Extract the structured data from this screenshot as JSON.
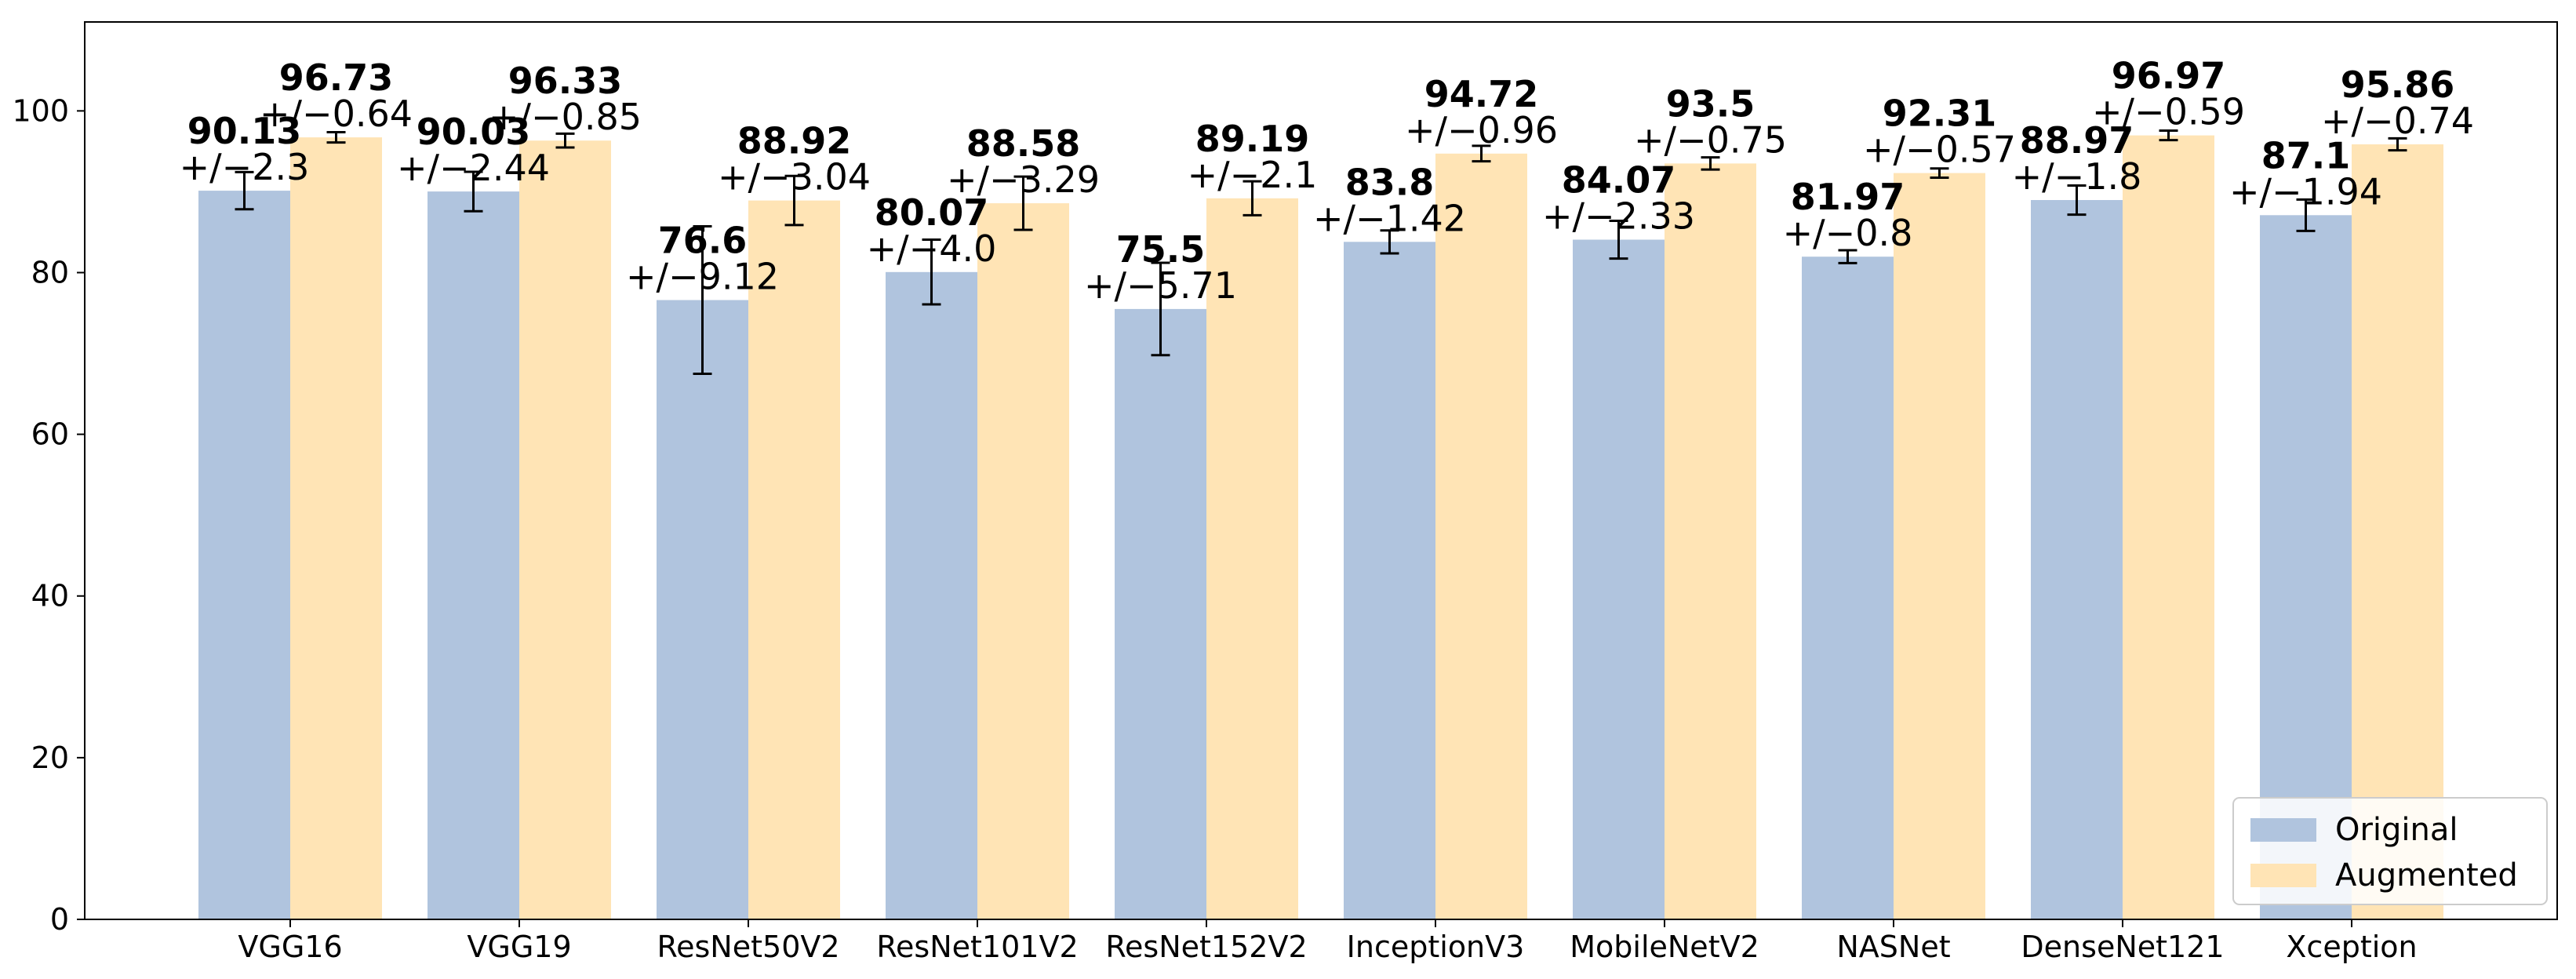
{
  "chart_data": {
    "type": "bar",
    "title": "",
    "xlabel": "",
    "ylabel": "",
    "ylim": [
      0,
      111
    ],
    "yticks": [
      0,
      20,
      40,
      60,
      80,
      100
    ],
    "grid": false,
    "legend_position": "bottom-right",
    "categories": [
      "VGG16",
      "VGG19",
      "ResNet50V2",
      "ResNet101V2",
      "ResNet152V2",
      "InceptionV3",
      "MobileNetV2",
      "NASNet",
      "DenseNet121",
      "Xception"
    ],
    "series": [
      {
        "name": "Original",
        "color": "#b0c4de",
        "values": [
          90.13,
          90.03,
          76.6,
          80.07,
          75.5,
          83.8,
          84.07,
          81.97,
          88.97,
          87.1
        ],
        "errors": [
          2.3,
          2.44,
          9.12,
          4.0,
          5.71,
          1.42,
          2.33,
          0.8,
          1.8,
          1.94
        ],
        "value_labels": [
          "90.13",
          "90.03",
          "76.6",
          "80.07",
          "75.5",
          "83.8",
          "84.07",
          "81.97",
          "88.97",
          "87.1"
        ],
        "error_labels": [
          "+/−2.3",
          "+/−2.44",
          "+/−9.12",
          "+/−4.0",
          "+/−5.71",
          "+/−1.42",
          "+/−2.33",
          "+/−0.8",
          "+/−1.8",
          "+/−1.94"
        ]
      },
      {
        "name": "Augmented",
        "color": "#ffe4b5",
        "values": [
          96.73,
          96.33,
          88.92,
          88.58,
          89.19,
          94.72,
          93.5,
          92.31,
          96.97,
          95.86
        ],
        "errors": [
          0.64,
          0.85,
          3.04,
          3.29,
          2.1,
          0.96,
          0.75,
          0.57,
          0.59,
          0.74
        ],
        "value_labels": [
          "96.73",
          "96.33",
          "88.92",
          "88.58",
          "89.19",
          "94.72",
          "93.5",
          "92.31",
          "96.97",
          "95.86"
        ],
        "error_labels": [
          "+/−0.64",
          "+/−0.85",
          "+/−3.04",
          "+/−3.29",
          "+/−2.1",
          "+/−0.96",
          "+/−0.75",
          "+/−0.57",
          "+/−0.59",
          "+/−0.74"
        ]
      }
    ]
  }
}
